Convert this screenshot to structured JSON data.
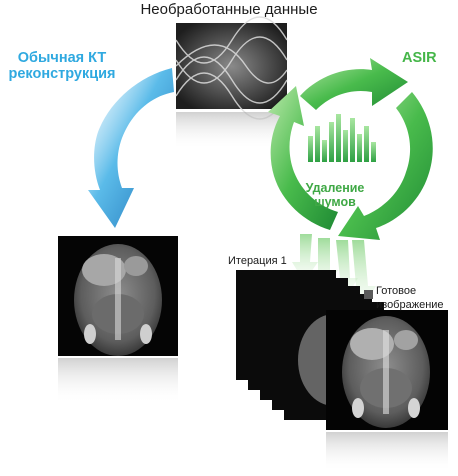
{
  "title": "Необработанные данные",
  "ct_label": "Обычная КТ реконструкция",
  "asir_label": "ASIR",
  "denoise_label": "Удаление шумов",
  "iteration_label": "Итерация 1",
  "final_image_label": "Готовое изображение",
  "colors": {
    "blue_arrow": "#2b93d3",
    "green_arrow": "#3fb54a",
    "ct_label": "#2fa9e0",
    "asir_label": "#45b649"
  },
  "icons": [
    "sinogram-image",
    "ct-scan-image",
    "equalizer-icon"
  ]
}
